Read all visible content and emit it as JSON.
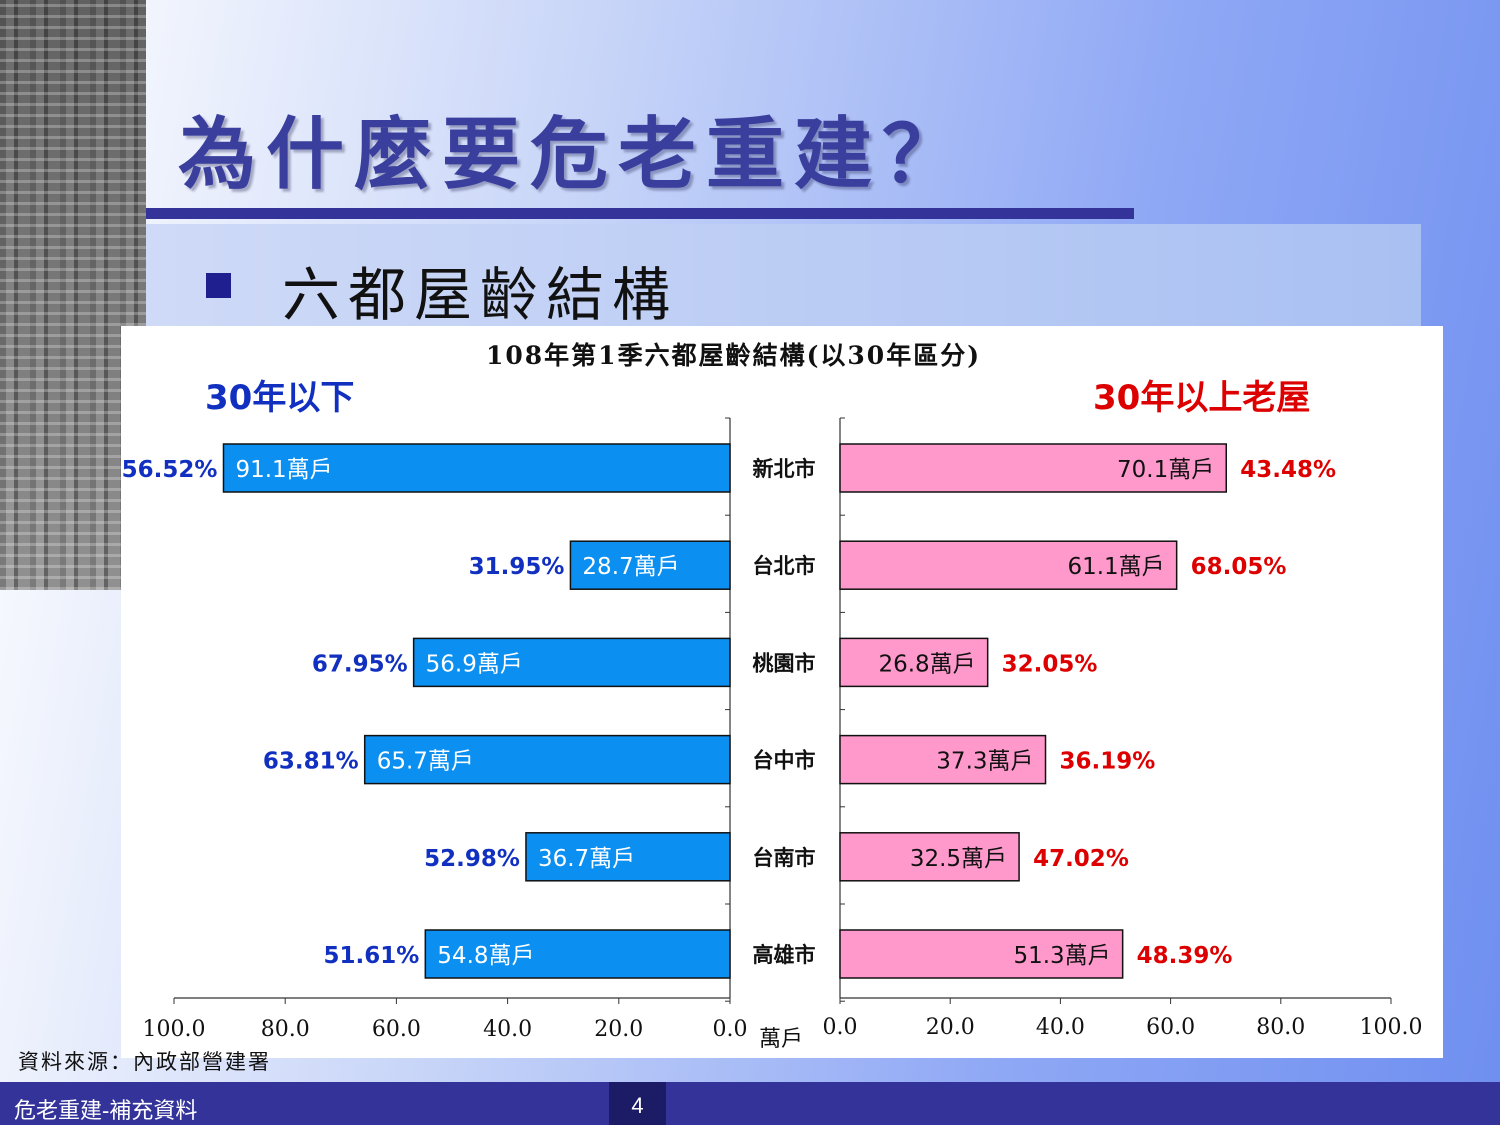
{
  "slide": {
    "title": "為什麼要危老重建？",
    "subtitle": "六都屋齡結構",
    "source": "資料來源：內政部營建署",
    "footer_text": "危老重建-補充資料",
    "page_number": "4"
  },
  "chart_data": {
    "type": "bar",
    "orientation": "horizontal",
    "title": "108年第1季六都屋齡結構(以30年區分)",
    "categories": [
      "新北市",
      "台北市",
      "桃園市",
      "台中市",
      "台南市",
      "高雄市"
    ],
    "unit_label": "萬戶",
    "series": [
      {
        "name": "30年以下",
        "side": "left",
        "color": "#0b8ff0",
        "values": [
          91.1,
          28.7,
          56.9,
          65.7,
          36.7,
          54.8
        ],
        "value_labels": [
          "91.1萬戶",
          "28.7萬戶",
          "56.9萬戶",
          "65.7萬戶",
          "36.7萬戶",
          "54.8萬戶"
        ],
        "percent_labels": [
          "56.52%",
          "31.95%",
          "67.95%",
          "63.81%",
          "52.98%",
          "51.61%"
        ],
        "percent_color": "#1130c0"
      },
      {
        "name": "30年以上老屋",
        "side": "right",
        "color": "#ff99cc",
        "values": [
          70.1,
          61.1,
          26.8,
          37.3,
          32.5,
          51.3
        ],
        "value_labels": [
          "70.1萬戶",
          "61.1萬戶",
          "26.8萬戶",
          "37.3萬戶",
          "32.5萬戶",
          "51.3萬戶"
        ],
        "percent_labels": [
          "43.48%",
          "68.05%",
          "32.05%",
          "36.19%",
          "47.02%",
          "48.39%"
        ],
        "percent_color": "#dd0000"
      }
    ],
    "xlim": [
      0,
      100
    ],
    "x_ticks": [
      "0.0",
      "20.0",
      "40.0",
      "60.0",
      "80.0",
      "100.0"
    ],
    "grid": false,
    "legend": "none"
  }
}
